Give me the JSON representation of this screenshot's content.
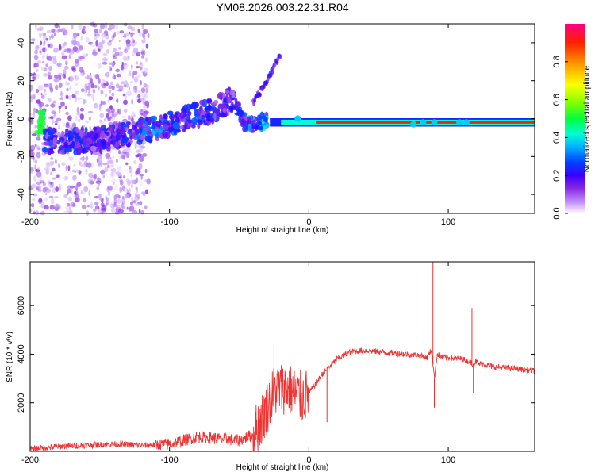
{
  "title": "YM08.2026.003.22.31.R04",
  "chart_data": [
    {
      "type": "heatmap",
      "xlabel": "Height of straight line (km)",
      "ylabel": "Frequency (Hz)",
      "xlim": [
        -200,
        162
      ],
      "ylim": [
        -50,
        50
      ],
      "x_ticks": [
        -200,
        -100,
        0,
        100
      ],
      "y_ticks": [
        -40,
        -20,
        0,
        20,
        40
      ],
      "colorbar": {
        "label": "Normalized spectral amplitude",
        "range": [
          0,
          1
        ],
        "ticks": [
          "0.0",
          "0.2",
          "0.4",
          "0.6",
          "0.8"
        ],
        "colors": [
          "#ffffff",
          "#c9a0ff",
          "#8a2be2",
          "#3a00ff",
          "#0040ff",
          "#00b0ff",
          "#00ffd0",
          "#00ff40",
          "#80ff00",
          "#ffff00",
          "#ffa000",
          "#ff2000",
          "#ff0080"
        ]
      },
      "main_trace": [
        {
          "x": -190,
          "y": -12,
          "amp": 0.3
        },
        {
          "x": -170,
          "y": -12,
          "amp": 0.3
        },
        {
          "x": -150,
          "y": -11,
          "amp": 0.25
        },
        {
          "x": -130,
          "y": -8,
          "amp": 0.3
        },
        {
          "x": -110,
          "y": -5,
          "amp": 0.35
        },
        {
          "x": -90,
          "y": 0,
          "amp": 0.3
        },
        {
          "x": -70,
          "y": 4,
          "amp": 0.3
        },
        {
          "x": -55,
          "y": 10,
          "amp": 0.25
        },
        {
          "x": -45,
          "y": -3,
          "amp": 0.35
        },
        {
          "x": -30,
          "y": -2,
          "amp": 0.45
        },
        {
          "x": -15,
          "y": 0,
          "amp": 0.6
        },
        {
          "x": 0,
          "y": -2,
          "amp": 0.8
        },
        {
          "x": 20,
          "y": -2,
          "amp": 0.9
        },
        {
          "x": 50,
          "y": -2,
          "amp": 1.0
        },
        {
          "x": 80,
          "y": -2,
          "amp": 0.85
        },
        {
          "x": 100,
          "y": -2,
          "amp": 0.9
        },
        {
          "x": 130,
          "y": -2,
          "amp": 1.0
        },
        {
          "x": 162,
          "y": -2,
          "amp": 1.0
        }
      ],
      "upper_branch": [
        {
          "x": -40,
          "y": 8
        },
        {
          "x": -30,
          "y": 20
        },
        {
          "x": -20,
          "y": 35
        }
      ]
    },
    {
      "type": "line",
      "xlabel": "Height of straight line (km)",
      "ylabel": "SNR (10 * v/v)",
      "xlim": [
        -200,
        162
      ],
      "ylim": [
        0,
        7800
      ],
      "x_ticks": [
        -200,
        -100,
        0,
        100
      ],
      "y_ticks": [
        2000,
        4000,
        6000
      ],
      "series": [
        {
          "color": "#ee3333",
          "x": [
            -200,
            -180,
            -160,
            -140,
            -120,
            -100,
            -90,
            -80,
            -70,
            -60,
            -50,
            -40,
            -35,
            -30,
            -25,
            -20,
            -15,
            -10,
            -5,
            0,
            5,
            10,
            15,
            20,
            25,
            30,
            40,
            50,
            60,
            70,
            80,
            85,
            88,
            90,
            92,
            95,
            100,
            110,
            115,
            118,
            120,
            122,
            125,
            130,
            140,
            150,
            162
          ],
          "y": [
            100,
            200,
            250,
            300,
            250,
            300,
            450,
            600,
            550,
            500,
            450,
            700,
            1200,
            1800,
            2500,
            2600,
            2600,
            2400,
            2200,
            2400,
            2800,
            3200,
            3500,
            3800,
            3950,
            4100,
            4150,
            4100,
            4050,
            4000,
            3950,
            3850,
            4200,
            3000,
            4000,
            3900,
            3850,
            3800,
            3700,
            3600,
            3700,
            3600,
            3600,
            3500,
            3450,
            3400,
            3300
          ]
        }
      ],
      "spikes": [
        {
          "x": 89,
          "y": 7800
        },
        {
          "x": 90,
          "y": 1800
        },
        {
          "x": 117,
          "y": 5900
        },
        {
          "x": 118,
          "y": 2400
        },
        {
          "x": 13,
          "y": 1200
        },
        {
          "x": -25,
          "y": 4400
        }
      ]
    }
  ]
}
